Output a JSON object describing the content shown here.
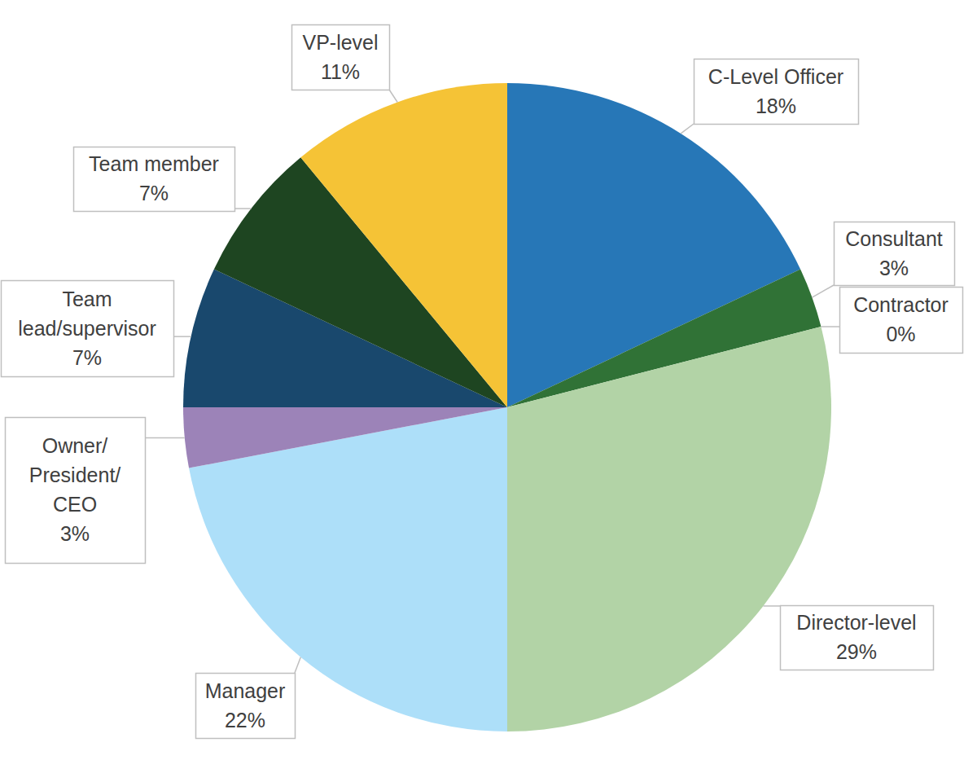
{
  "chart_data": {
    "type": "pie",
    "categories": [
      "C-Level Officer",
      "Consultant",
      "Contractor",
      "Director-level",
      "Manager",
      "Owner/President/CEO",
      "Team lead/supervisor",
      "Team member",
      "VP-level"
    ],
    "values": [
      18,
      3,
      0,
      29,
      22,
      3,
      7,
      7,
      11
    ],
    "value_labels": [
      "18%",
      "3%",
      "0%",
      "29%",
      "22%",
      "3%",
      "7%",
      "7%",
      "11%"
    ],
    "colors": [
      "#2777b7",
      "#307236",
      "#2f6e35",
      "#b2d3a6",
      "#addff9",
      "#9c83b8",
      "#19486d",
      "#1e4521",
      "#f5c336"
    ],
    "data_labels": true
  }
}
